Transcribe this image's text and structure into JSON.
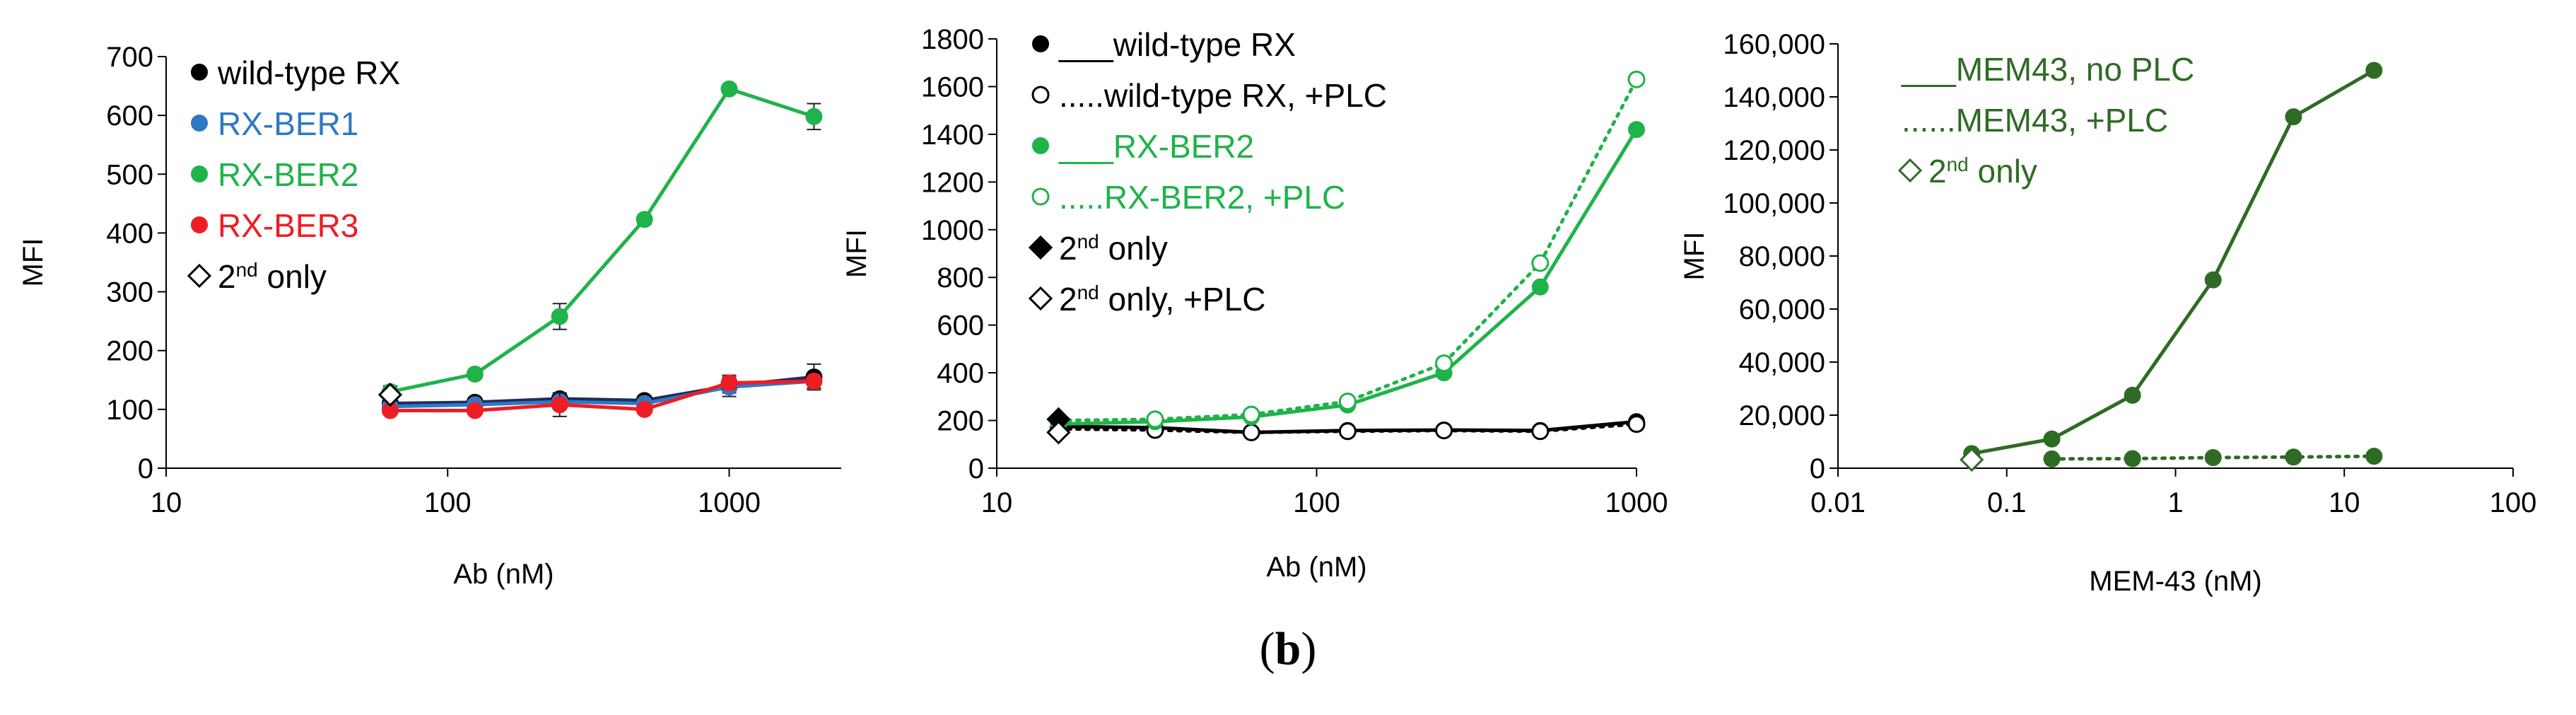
{
  "caption": {
    "open": "(",
    "letter": "b",
    "close": ")"
  },
  "colors": {
    "black": "#000000",
    "blue": "#2f78c4",
    "green": "#1fb34a",
    "red": "#ee1c24",
    "dark_green": "#2e6b24",
    "navy": "#1f2d5c"
  },
  "chart_data": [
    {
      "type": "line",
      "id": "p1",
      "xscale": "log",
      "xlim": [
        10,
        2500
      ],
      "ylim": [
        0,
        700
      ],
      "xlabel": "Ab (nM)",
      "ylabel": "MFI",
      "xticks": [
        10,
        100,
        1000
      ],
      "xtick_labels": [
        "10",
        "100",
        "1000"
      ],
      "yticks": [
        0,
        100,
        200,
        300,
        400,
        500,
        600,
        700
      ],
      "ytick_labels": [
        "0",
        "100",
        "200",
        "300",
        "400",
        "500",
        "600",
        "700"
      ],
      "series": [
        {
          "name": "wild-type RX",
          "label": "wild-type RX",
          "color": "#000000",
          "line_color": "#1f2d5c",
          "marker": "filled",
          "dash": "solid",
          "x": [
            62.5,
            125,
            250,
            500,
            1000,
            2000
          ],
          "y": [
            110,
            112,
            118,
            115,
            140,
            155
          ],
          "err": [
            8,
            8,
            10,
            8,
            18,
            22
          ]
        },
        {
          "name": "RX-BER1",
          "label": "RX-BER1",
          "color": "#2f78c4",
          "line_color": "#2f78c4",
          "marker": "filled",
          "dash": "solid",
          "x": [
            62.5,
            125,
            250,
            500,
            1000,
            2000
          ],
          "y": [
            105,
            108,
            113,
            110,
            138,
            148
          ],
          "err": [
            6,
            6,
            8,
            6,
            10,
            12
          ]
        },
        {
          "name": "RX-BER2",
          "label": "RX-BER2",
          "color": "#1fb34a",
          "line_color": "#1fb34a",
          "marker": "filled",
          "dash": "solid",
          "x": [
            62.5,
            125,
            250,
            500,
            1000,
            2000
          ],
          "y": [
            130,
            160,
            258,
            423,
            645,
            598
          ],
          "err": [
            10,
            8,
            22,
            8,
            8,
            22
          ]
        },
        {
          "name": "RX-BER3",
          "label": "RX-BER3",
          "color": "#ee1c24",
          "line_color": "#ee1c24",
          "marker": "filled",
          "dash": "solid",
          "x": [
            62.5,
            125,
            250,
            500,
            1000,
            2000
          ],
          "y": [
            98,
            98,
            108,
            100,
            145,
            148
          ],
          "err": [
            6,
            6,
            20,
            6,
            10,
            12
          ]
        },
        {
          "name": "2nd only",
          "label_main": "2",
          "label_sup": "nd",
          "label_rest": " only",
          "color": "#000000",
          "marker": "open-diamond",
          "dash": "none",
          "x": [
            62.5
          ],
          "y": [
            125
          ],
          "err": [
            6
          ]
        }
      ]
    },
    {
      "type": "line",
      "id": "p2",
      "xscale": "log",
      "xlim": [
        10,
        1000
      ],
      "ylim": [
        0,
        1800
      ],
      "xlabel": "Ab (nM)",
      "ylabel": "MFI",
      "xticks": [
        10,
        100,
        1000
      ],
      "xtick_labels": [
        "10",
        "100",
        "1000"
      ],
      "yticks": [
        0,
        200,
        400,
        600,
        800,
        1000,
        1200,
        1400,
        1600,
        1800
      ],
      "ytick_labels": [
        "0",
        "200",
        "400",
        "600",
        "800",
        "1000",
        "1200",
        "1400",
        "1600",
        "1800"
      ],
      "series": [
        {
          "name": "wild-type RX",
          "label": "___wild-type RX",
          "color": "#000000",
          "marker": "filled",
          "dash": "solid",
          "x": [
            15.6,
            31.25,
            62.5,
            125,
            250,
            500,
            1000
          ],
          "y": [
            175,
            170,
            150,
            158,
            160,
            158,
            195
          ]
        },
        {
          "name": "wild-type RX, +PLC",
          "label": ".....wild-type RX, +PLC",
          "color": "#000000",
          "marker": "open",
          "dash": "dot",
          "x": [
            15.6,
            31.25,
            62.5,
            125,
            250,
            500,
            1000
          ],
          "y": [
            165,
            160,
            150,
            155,
            158,
            155,
            185
          ]
        },
        {
          "name": "RX-BER2",
          "label": "___RX-BER2",
          "color": "#1fb34a",
          "marker": "filled",
          "dash": "solid",
          "x": [
            15.6,
            31.25,
            62.5,
            125,
            250,
            500,
            1000
          ],
          "y": [
            185,
            195,
            215,
            265,
            400,
            760,
            1420
          ]
        },
        {
          "name": "RX-BER2, +PLC",
          "label": ".....RX-BER2, +PLC",
          "color": "#1fb34a",
          "marker": "open",
          "dash": "dot",
          "x": [
            15.6,
            31.25,
            62.5,
            125,
            250,
            500,
            1000
          ],
          "y": [
            200,
            205,
            225,
            280,
            440,
            860,
            1630
          ]
        },
        {
          "name": "2nd only",
          "label_main": "2",
          "label_sup": "nd",
          "label_rest": " only",
          "color": "#000000",
          "marker": "filled-diamond",
          "dash": "none",
          "x": [
            15.6
          ],
          "y": [
            205
          ]
        },
        {
          "name": "2nd only, +PLC",
          "label_main": "2",
          "label_sup": "nd",
          "label_rest": " only, +PLC",
          "color": "#000000",
          "marker": "open-diamond",
          "dash": "none",
          "x": [
            15.6
          ],
          "y": [
            150
          ]
        }
      ]
    },
    {
      "type": "line",
      "id": "p3",
      "xscale": "log",
      "xlim": [
        0.01,
        100
      ],
      "ylim": [
        0,
        160000
      ],
      "xlabel": "MEM-43 (nM)",
      "ylabel": "MFI",
      "xticks": [
        0.01,
        0.1,
        1,
        10,
        100
      ],
      "xtick_labels": [
        "0.01",
        "0.1",
        "1",
        "10",
        "100"
      ],
      "yticks": [
        0,
        20000,
        40000,
        60000,
        80000,
        100000,
        120000,
        140000,
        160000
      ],
      "ytick_labels": [
        "0",
        "20,000",
        "40,000",
        "60,000",
        "80,000",
        "100,000",
        "120,000",
        "140,000",
        "160,000"
      ],
      "series": [
        {
          "name": "MEM43, no PLC",
          "label": "___MEM43, no PLC",
          "color": "#2e6b24",
          "marker": "filled",
          "dash": "solid",
          "x": [
            0.062,
            0.185,
            0.556,
            1.67,
            5,
            15
          ],
          "y": [
            5500,
            11000,
            27500,
            71000,
            132500,
            150000
          ]
        },
        {
          "name": "MEM43, +PLC",
          "label": "......MEM43, +PLC",
          "color": "#2e6b24",
          "marker": "filled",
          "dash": "dot",
          "x": [
            0.185,
            0.556,
            1.67,
            5,
            15
          ],
          "y": [
            3500,
            3600,
            4000,
            4200,
            4500
          ]
        },
        {
          "name": "2nd only",
          "label_main": "2",
          "label_sup": "nd",
          "label_rest": " only",
          "color": "#2e6b24",
          "marker": "open-diamond",
          "dash": "none",
          "x": [
            0.062
          ],
          "y": [
            3200
          ]
        }
      ]
    }
  ]
}
